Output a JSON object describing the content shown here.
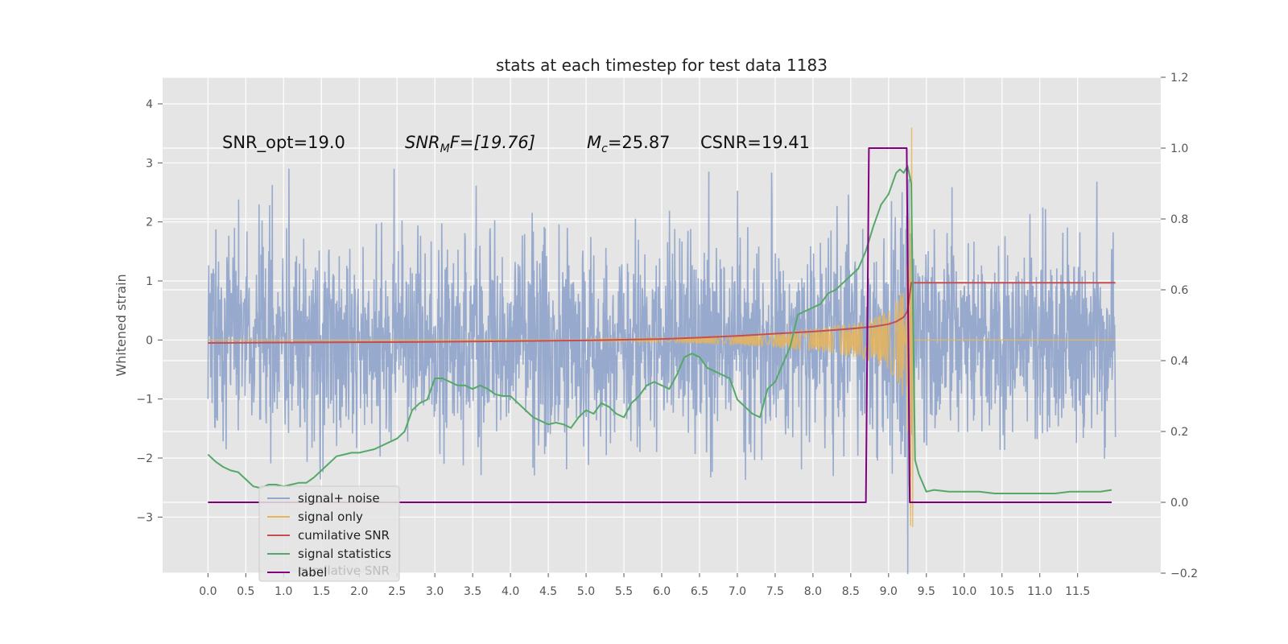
{
  "chart_data": {
    "type": "line",
    "title": "stats at each timestep for test data 1183",
    "ylabel": "Whitened strain",
    "xlim": [
      -0.6,
      12.6
    ],
    "ylim": [
      -3.95,
      4.45
    ],
    "y2lim": [
      -0.2,
      1.2
    ],
    "x_ticks": [
      0.0,
      0.5,
      1.0,
      1.5,
      2.0,
      2.5,
      3.0,
      3.5,
      4.0,
      4.5,
      5.0,
      5.5,
      6.0,
      6.5,
      7.0,
      7.5,
      8.0,
      8.5,
      9.0,
      9.5,
      10.0,
      10.5,
      11.0,
      11.5
    ],
    "x_tick_labels": [
      "0.0",
      "0.5",
      "1.0",
      "1.5",
      "2.0",
      "2.5",
      "3.0",
      "3.5",
      "4.0",
      "4.5",
      "5.0",
      "5.5",
      "6.0",
      "6.5",
      "7.0",
      "7.5",
      "8.0",
      "8.5",
      "9.0",
      "9.5",
      "10.0",
      "10.5",
      "11.0",
      "11.5"
    ],
    "y_ticks": [
      -3,
      -2,
      -1,
      0,
      1,
      2,
      3,
      4
    ],
    "y_tick_labels": [
      "−3",
      "−2",
      "−1",
      "0",
      "1",
      "2",
      "3",
      "4"
    ],
    "y2_ticks": [
      -0.2,
      0.0,
      0.2,
      0.4,
      0.6,
      0.8,
      1.0,
      1.2
    ],
    "y2_tick_labels": [
      "−0.2",
      "0.0",
      "0.2",
      "0.4",
      "0.6",
      "0.8",
      "1.0",
      "1.2"
    ],
    "grid": true,
    "legend_position": "lower-left",
    "annotations": {
      "snr_opt": "SNR_opt=19.0",
      "snr_mf_main": "SNR",
      "snr_mf_sub": "M",
      "snr_mf_rest": "F=[19.76]",
      "mc_main": "M",
      "mc_sub": "c",
      "mc_rest": "=25.87",
      "csnr": "CSNR=19.41"
    },
    "legend_ghost_text": "cumilative SNR",
    "series": [
      {
        "name": "signal+ noise",
        "axis": "left",
        "color": "#92a7cb",
        "description_range": [
          -1.5,
          1.5
        ],
        "x_range": [
          0.0,
          12.0
        ]
      },
      {
        "name": "signal only",
        "axis": "left",
        "color": "#e8b559",
        "envelope_x": [
          5.0,
          6.0,
          6.5,
          7.0,
          7.5,
          8.0,
          8.5,
          8.8,
          9.0,
          9.1,
          9.15,
          9.2,
          9.25,
          9.28,
          9.3
        ],
        "envelope_y": [
          0.02,
          0.04,
          0.06,
          0.09,
          0.13,
          0.19,
          0.28,
          0.37,
          0.5,
          0.65,
          0.8,
          1.0,
          1.5,
          2.5,
          3.6
        ]
      },
      {
        "name": "cumilative SNR",
        "axis": "right",
        "color": "#c44e52",
        "x": [
          0.0,
          1.0,
          2.0,
          3.0,
          4.0,
          5.0,
          5.5,
          6.0,
          6.5,
          7.0,
          7.5,
          8.0,
          8.5,
          8.8,
          9.0,
          9.1,
          9.2,
          9.25,
          9.3,
          12.0
        ],
        "y": [
          0.45,
          0.451,
          0.452,
          0.453,
          0.455,
          0.457,
          0.459,
          0.461,
          0.465,
          0.47,
          0.476,
          0.482,
          0.49,
          0.496,
          0.503,
          0.51,
          0.523,
          0.54,
          0.62,
          0.62
        ]
      },
      {
        "name": "signal statistics",
        "axis": "right",
        "color": "#55a868",
        "x": [
          0.0,
          0.1,
          0.2,
          0.3,
          0.4,
          0.5,
          0.6,
          0.7,
          0.8,
          0.9,
          1.0,
          1.1,
          1.2,
          1.3,
          1.4,
          1.5,
          1.6,
          1.7,
          1.8,
          1.9,
          2.0,
          2.1,
          2.2,
          2.3,
          2.4,
          2.5,
          2.6,
          2.7,
          2.8,
          2.9,
          3.0,
          3.1,
          3.2,
          3.3,
          3.4,
          3.5,
          3.6,
          3.7,
          3.8,
          3.9,
          4.0,
          4.1,
          4.2,
          4.3,
          4.4,
          4.5,
          4.6,
          4.7,
          4.8,
          4.9,
          5.0,
          5.1,
          5.2,
          5.3,
          5.4,
          5.5,
          5.6,
          5.7,
          5.8,
          5.9,
          6.0,
          6.1,
          6.2,
          6.3,
          6.4,
          6.5,
          6.6,
          6.7,
          6.8,
          6.9,
          7.0,
          7.1,
          7.2,
          7.3,
          7.4,
          7.5,
          7.6,
          7.7,
          7.8,
          7.9,
          8.0,
          8.1,
          8.2,
          8.3,
          8.4,
          8.5,
          8.6,
          8.7,
          8.8,
          8.9,
          9.0,
          9.1,
          9.15,
          9.2,
          9.25,
          9.3,
          9.35,
          9.4,
          9.5,
          9.6,
          9.8,
          10.0,
          10.2,
          10.4,
          10.6,
          10.8,
          11.0,
          11.2,
          11.4,
          11.6,
          11.8,
          11.95
        ],
        "y": [
          0.135,
          0.115,
          0.1,
          0.09,
          0.085,
          0.065,
          0.045,
          0.04,
          0.05,
          0.05,
          0.045,
          0.05,
          0.055,
          0.055,
          0.07,
          0.09,
          0.11,
          0.13,
          0.135,
          0.14,
          0.14,
          0.145,
          0.15,
          0.16,
          0.17,
          0.18,
          0.2,
          0.26,
          0.28,
          0.29,
          0.35,
          0.35,
          0.34,
          0.33,
          0.33,
          0.32,
          0.33,
          0.32,
          0.305,
          0.3,
          0.3,
          0.28,
          0.26,
          0.24,
          0.23,
          0.22,
          0.225,
          0.22,
          0.21,
          0.24,
          0.26,
          0.25,
          0.28,
          0.27,
          0.25,
          0.24,
          0.28,
          0.3,
          0.33,
          0.34,
          0.33,
          0.32,
          0.36,
          0.41,
          0.42,
          0.41,
          0.38,
          0.37,
          0.36,
          0.35,
          0.29,
          0.27,
          0.25,
          0.24,
          0.32,
          0.34,
          0.39,
          0.44,
          0.53,
          0.54,
          0.55,
          0.56,
          0.59,
          0.6,
          0.62,
          0.64,
          0.66,
          0.71,
          0.78,
          0.84,
          0.87,
          0.93,
          0.94,
          0.93,
          0.95,
          0.9,
          0.12,
          0.08,
          0.03,
          0.035,
          0.03,
          0.03,
          0.03,
          0.025,
          0.025,
          0.025,
          0.025,
          0.025,
          0.03,
          0.03,
          0.03,
          0.035
        ]
      },
      {
        "name": "label",
        "axis": "right",
        "color": "#800080",
        "x": [
          0.0,
          8.7,
          8.74,
          9.24,
          9.28,
          11.95
        ],
        "y": [
          0.0,
          0.0,
          1.0,
          1.0,
          0.0,
          0.0
        ]
      }
    ]
  }
}
